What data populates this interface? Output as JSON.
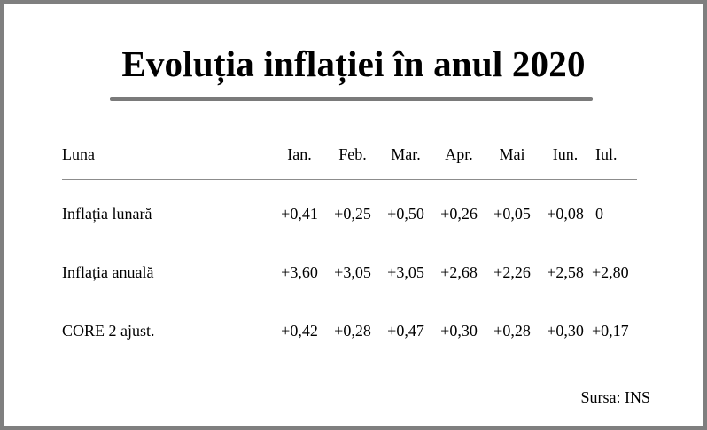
{
  "title": "Evoluția inflației în anul 2020",
  "table": {
    "header_label": "Luna",
    "months": [
      "Ian.",
      "Feb.",
      "Mar.",
      "Apr.",
      "Mai",
      "Iun.",
      "Iul."
    ],
    "rows": [
      {
        "label": "Inflația lunară",
        "values": [
          "+0,41",
          "+0,25",
          "+0,50",
          "+0,26",
          "+0,05",
          "+0,08",
          "0"
        ]
      },
      {
        "label": "Inflația anuală",
        "values": [
          "+3,60",
          "+3,05",
          "+3,05",
          "+2,68",
          "+2,26",
          "+2,58",
          "+2,80"
        ]
      },
      {
        "label": "CORE 2 ajust.",
        "values": [
          "+0,42",
          "+0,28",
          "+0,47",
          "+0,30",
          "+0,28",
          "+0,30",
          "+0,17"
        ]
      }
    ]
  },
  "source": "Sursa: INS",
  "colors": {
    "frame": "#7f7f7f",
    "title_rule": "#7a7a7a",
    "separator": "#8c8c8c",
    "text": "#000000"
  }
}
